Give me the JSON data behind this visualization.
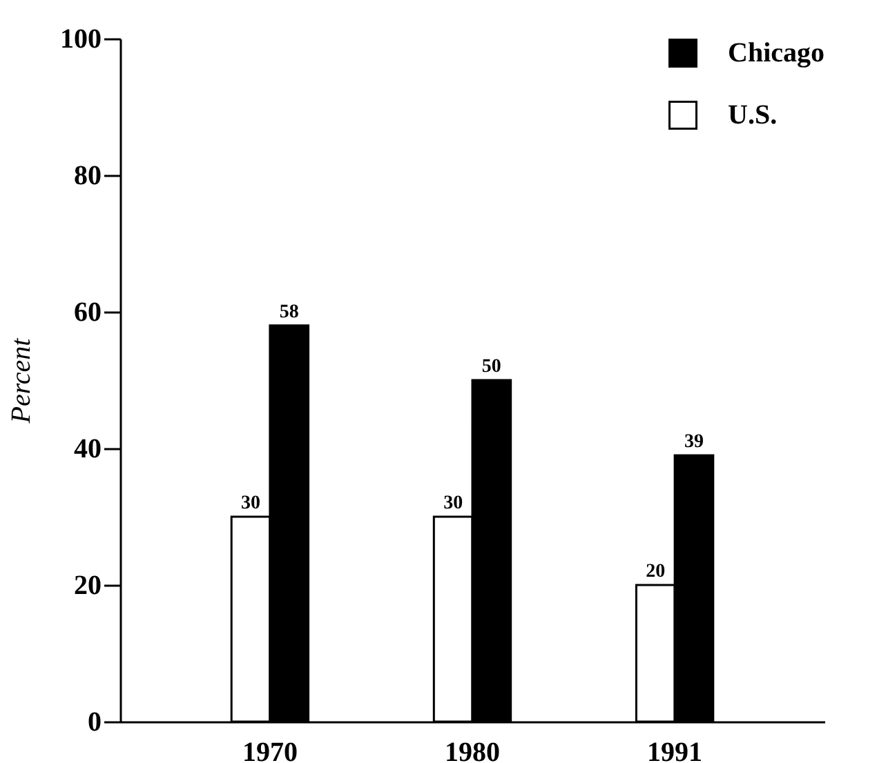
{
  "chart_data": {
    "type": "bar",
    "ylabel": "Percent",
    "categories": [
      "1970",
      "1980",
      "1991"
    ],
    "series": [
      {
        "name": "U.S.",
        "color": "#ffffff",
        "values": [
          30,
          30,
          20
        ]
      },
      {
        "name": "Chicago",
        "color": "#000000",
        "values": [
          58,
          50,
          39
        ]
      }
    ],
    "ylim": [
      0,
      100
    ],
    "yticks": [
      0,
      20,
      40,
      60,
      80,
      100
    ],
    "grid": false,
    "legend": "top right",
    "data_labels": true
  }
}
